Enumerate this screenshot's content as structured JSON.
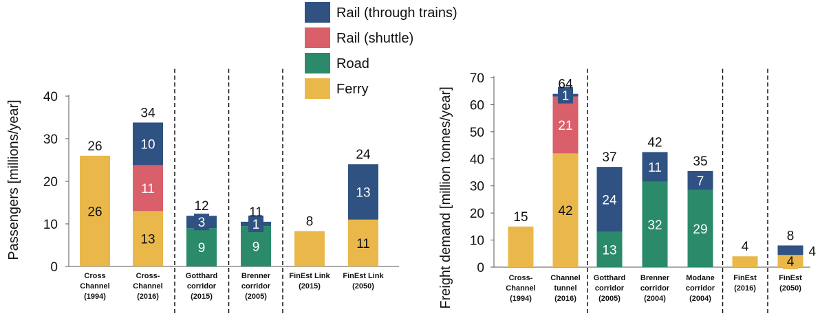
{
  "colors": {
    "rail_through": "#2f5282",
    "rail_shuttle": "#d9606b",
    "road": "#2a8a6a",
    "ferry": "#eab84a",
    "axis": "#555555",
    "divider": "#111111"
  },
  "legend": [
    {
      "key": "rail_through",
      "label": "Rail (through trains)"
    },
    {
      "key": "rail_shuttle",
      "label": "Rail (shuttle)"
    },
    {
      "key": "road",
      "label": "Road"
    },
    {
      "key": "ferry",
      "label": "Ferry"
    }
  ],
  "chart_data": [
    {
      "type": "bar",
      "stacked": true,
      "ylabel": "Passengers [millions/year]",
      "ylim": [
        0,
        40
      ],
      "yticks": [
        0,
        10,
        20,
        30,
        40
      ],
      "grid": false,
      "categories": [
        [
          "Cross",
          "Channel",
          "(1994)"
        ],
        [
          "Cross-",
          "Channel",
          "(2016)"
        ],
        [
          "Gotthard",
          "corridor",
          "(2015)"
        ],
        [
          "Brenner",
          "corridor",
          "(2005)"
        ],
        [
          "FinEst Link",
          "(2015)"
        ],
        [
          "FinEst Link",
          "(2050)"
        ]
      ],
      "totals": [
        26,
        34,
        12,
        11,
        8,
        24
      ],
      "series": [
        {
          "name": "Ferry",
          "key": "ferry",
          "values": [
            26,
            13,
            0,
            0,
            8.3,
            11
          ],
          "labels": [
            "26",
            "13",
            "",
            "",
            "",
            "11"
          ]
        },
        {
          "name": "Road",
          "key": "road",
          "values": [
            0,
            0,
            9,
            9.5,
            0,
            0
          ],
          "labels": [
            "",
            "",
            "9",
            "9",
            "",
            ""
          ]
        },
        {
          "name": "Rail (shuttle)",
          "key": "rail_shuttle",
          "values": [
            0,
            10.8,
            0,
            0,
            0,
            0
          ],
          "labels": [
            "",
            "11",
            "",
            "",
            "",
            ""
          ]
        },
        {
          "name": "Rail (through trains)",
          "key": "rail_through",
          "values": [
            0,
            10,
            2.9,
            1,
            0,
            13
          ],
          "labels": [
            "",
            "10",
            "3",
            "1",
            "",
            "13"
          ]
        }
      ],
      "dividers_after": [
        1,
        2,
        3
      ]
    },
    {
      "type": "bar",
      "stacked": true,
      "ylabel": "Freight demand [million tonnes/year]",
      "ylim": [
        0,
        70
      ],
      "yticks": [
        0,
        10,
        20,
        30,
        40,
        50,
        60,
        70
      ],
      "grid": false,
      "categories": [
        [
          "Cross-",
          "Channel",
          "(1994)"
        ],
        [
          "Channel",
          "tunnel",
          "(2016)"
        ],
        [
          "Gotthard",
          "corridor",
          "(2005)"
        ],
        [
          "Brenner",
          "corridor",
          "(2004)"
        ],
        [
          "Modane",
          "corridor",
          "(2004)"
        ],
        [
          "FinEst",
          "(2016)"
        ],
        [
          "FinEst",
          "(2050)"
        ]
      ],
      "totals": [
        15,
        64,
        37,
        42,
        35,
        4,
        8
      ],
      "series": [
        {
          "name": "Ferry",
          "key": "ferry",
          "values": [
            15,
            42,
            0,
            0,
            0,
            4,
            4.5
          ],
          "labels": [
            "",
            "42",
            "",
            "",
            "",
            "",
            "4"
          ]
        },
        {
          "name": "Road",
          "key": "road",
          "values": [
            0,
            0,
            13,
            31.5,
            28.5,
            0,
            0
          ],
          "labels": [
            "",
            "",
            "13",
            "32",
            "29",
            "",
            ""
          ]
        },
        {
          "name": "Rail (shuttle)",
          "key": "rail_shuttle",
          "values": [
            0,
            21,
            0,
            0,
            0,
            0,
            0
          ],
          "labels": [
            "",
            "21",
            "",
            "",
            "",
            "",
            ""
          ]
        },
        {
          "name": "Rail (through trains)",
          "key": "rail_through",
          "values": [
            0,
            1,
            24,
            11,
            7,
            0,
            3.5
          ],
          "labels": [
            "",
            "1",
            "24",
            "11",
            "7",
            "",
            ""
          ]
        }
      ],
      "side_labels": [
        {
          "bar": 6,
          "text": "4"
        }
      ],
      "dividers_after": [
        1,
        4,
        5
      ]
    }
  ]
}
